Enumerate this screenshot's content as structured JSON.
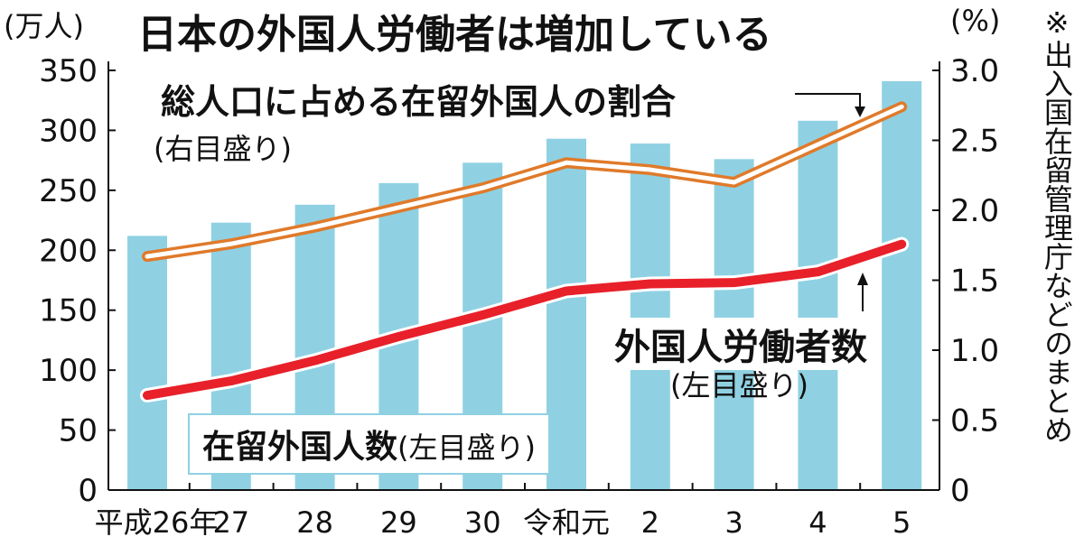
{
  "title": "日本の外国人労働者は増加している",
  "note": "※出入国在留管理庁などのまとめ",
  "chart_data": {
    "type": "bar+line",
    "title": "日本の外国人労働者は増加している",
    "left_unit": "(万人)",
    "right_unit": "(%)",
    "categories": [
      "平成26年",
      "27",
      "28",
      "29",
      "30",
      "令和元",
      "2",
      "3",
      "4",
      "5"
    ],
    "left_ylim": [
      0,
      350
    ],
    "left_ticks": [
      "0",
      "50",
      "100",
      "150",
      "200",
      "250",
      "300",
      "350"
    ],
    "right_ylim": [
      0,
      3.0
    ],
    "right_ticks": [
      "0",
      "0.5",
      "1.0",
      "1.5",
      "2.0",
      "2.5",
      "3.0"
    ],
    "series": [
      {
        "name": "在留外国人数",
        "axis_label": "(左目盛り)",
        "kind": "bar",
        "color": "#8fd1e3",
        "values": [
          212,
          223,
          238,
          256,
          273,
          293,
          289,
          276,
          308,
          341
        ]
      },
      {
        "name": "外国人労働者数",
        "axis_label": "(左目盛り)",
        "kind": "line",
        "color": "#e8202a",
        "values": [
          79,
          91,
          108,
          128,
          146,
          166,
          172,
          173,
          182,
          205
        ]
      },
      {
        "name": "総人口に占める在留外国人の割合",
        "axis_label": "(右目盛り)",
        "kind": "line",
        "color": "#e07a2a",
        "values": [
          1.67,
          1.76,
          1.88,
          2.02,
          2.16,
          2.34,
          2.29,
          2.2,
          2.47,
          2.74
        ]
      }
    ],
    "grid": false
  }
}
